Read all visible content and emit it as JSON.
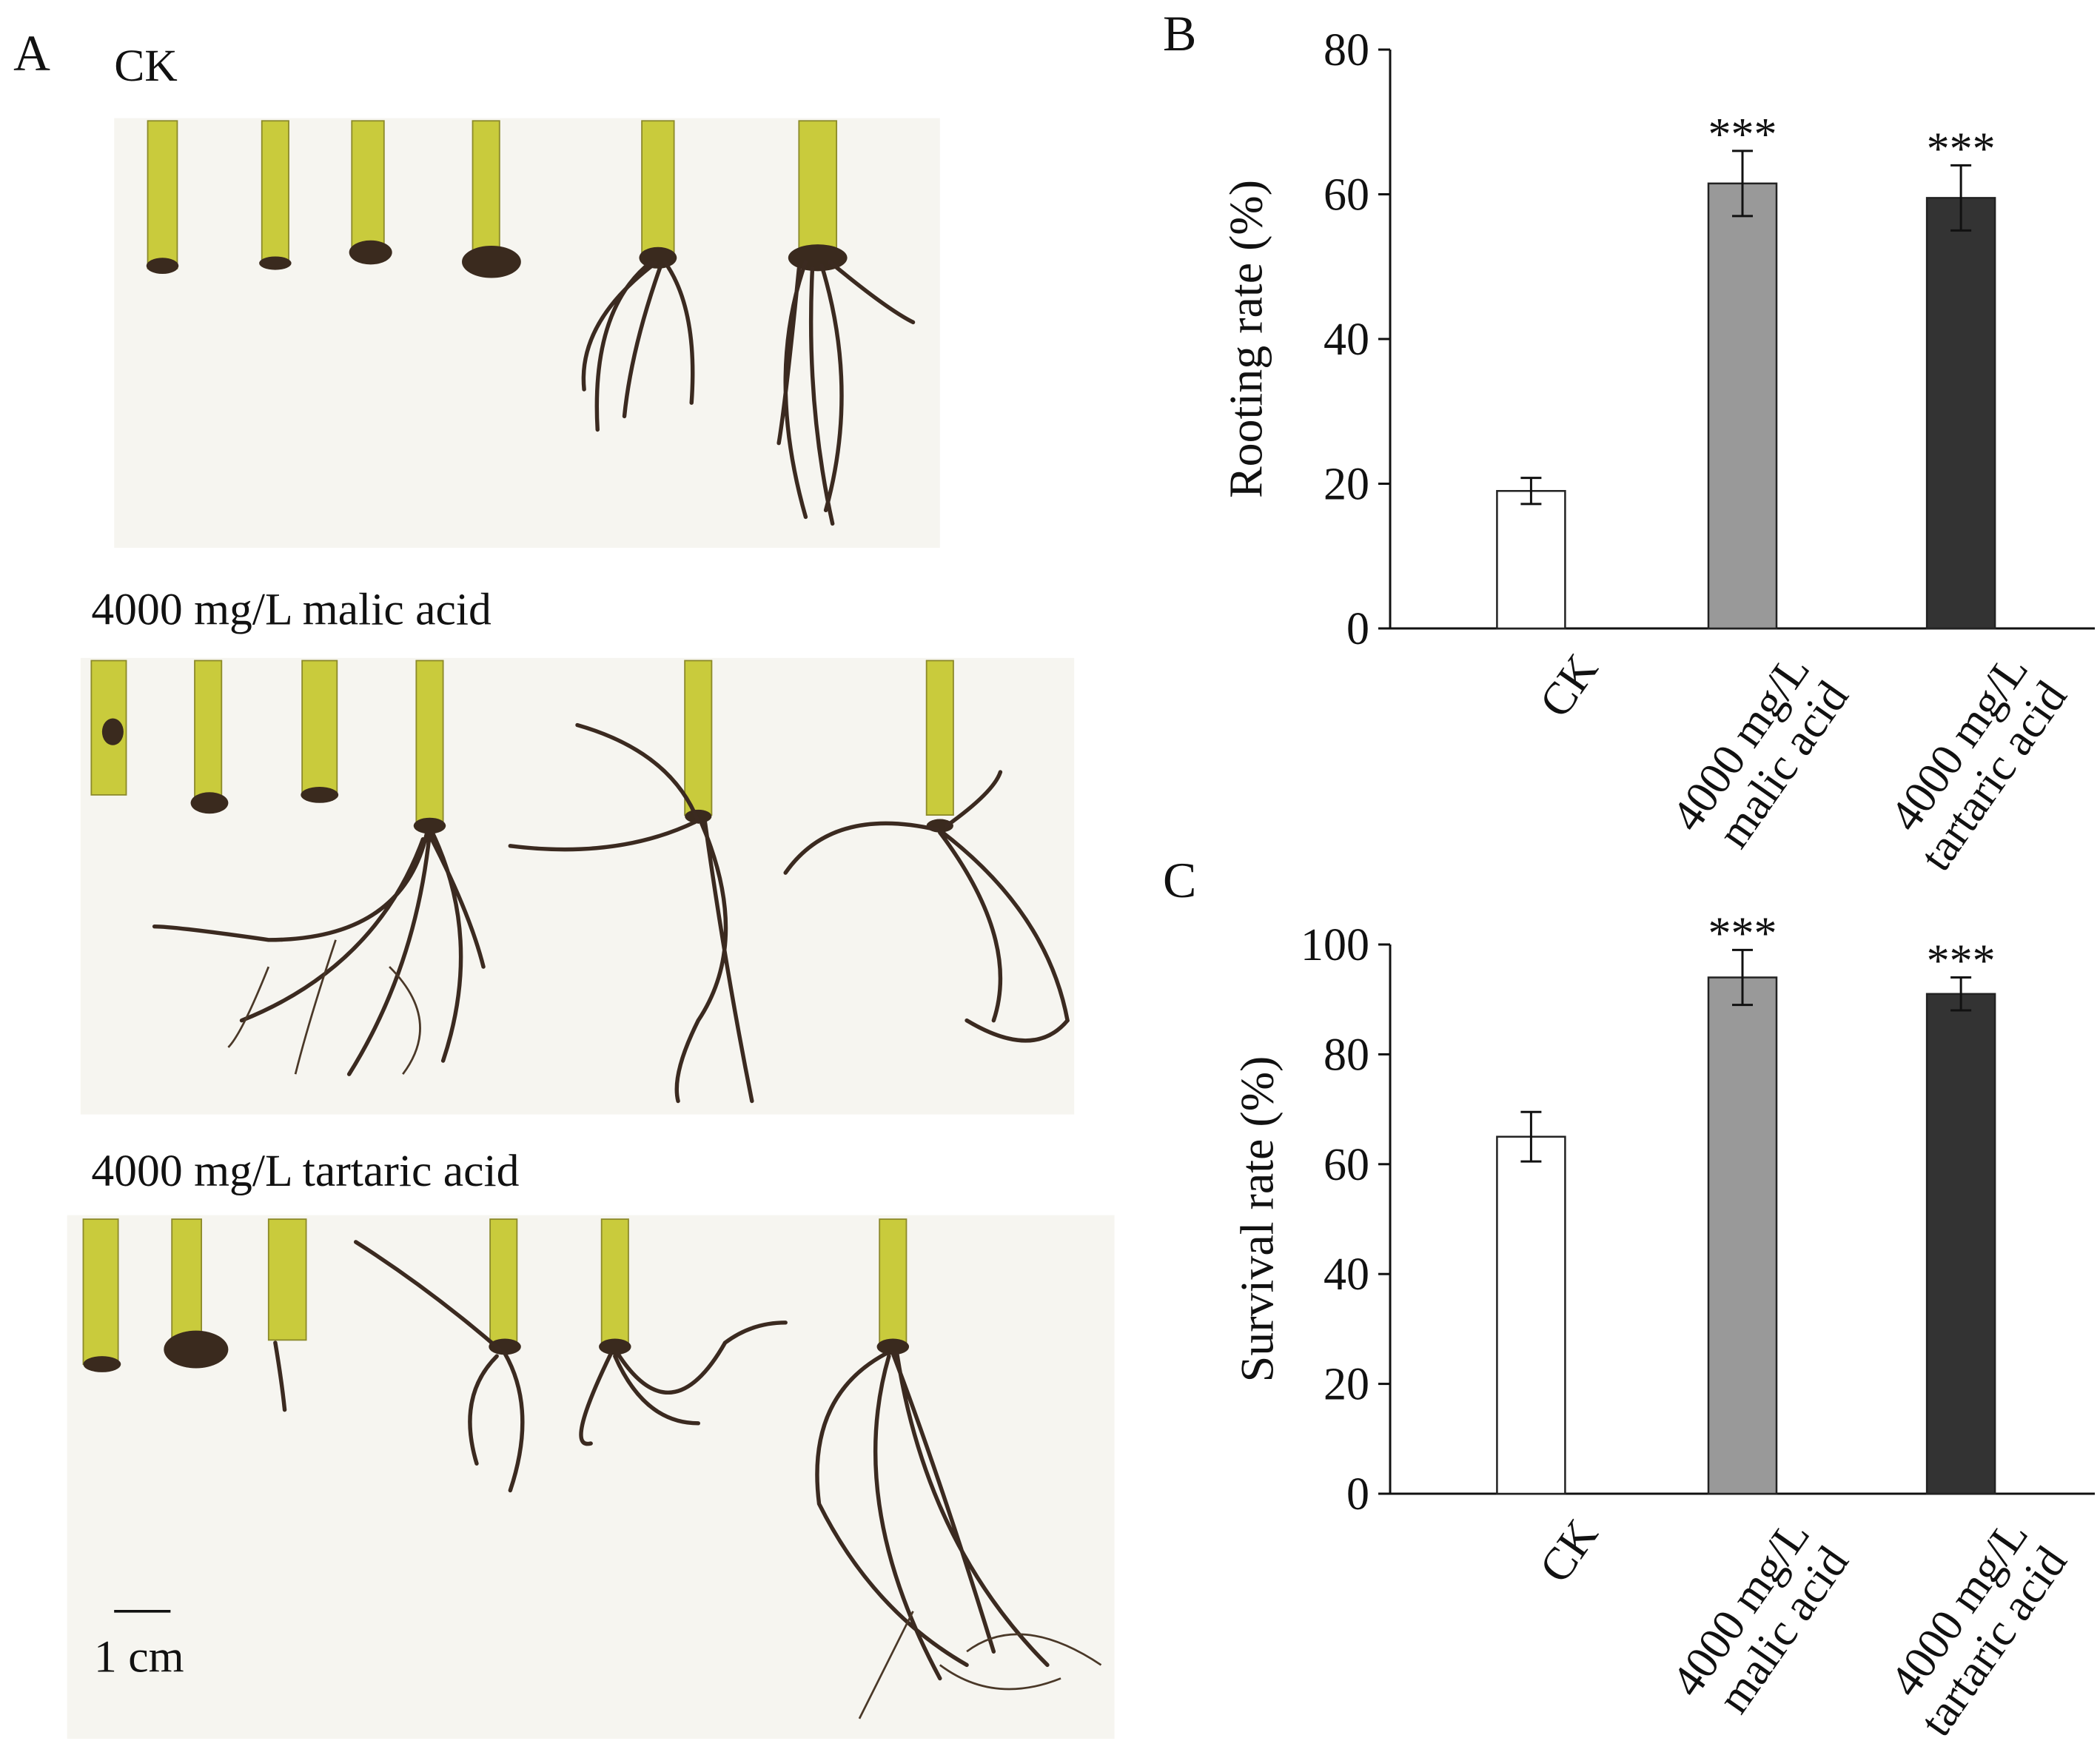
{
  "panel_a": {
    "label": "A",
    "groups": [
      "CK",
      "4000 mg/L malic acid",
      "4000 mg/L tartaric acid"
    ],
    "scale_bar": "1 cm"
  },
  "chart_data": [
    {
      "type": "bar",
      "panel_label": "B",
      "y_label": "Rooting rate (%)",
      "categories": [
        "CK",
        "4000 mg/L malic acid",
        "4000 mg/L tartaric acid"
      ],
      "values": [
        19,
        61.5,
        59.5
      ],
      "errors": [
        1.8,
        4.5,
        4.5
      ],
      "significance": [
        null,
        "***",
        "***"
      ],
      "colors": [
        "#ffffff",
        "#999999",
        "#333333"
      ],
      "ylim": [
        0,
        80
      ],
      "yticks": [
        0,
        20,
        40,
        60,
        80
      ],
      "grid": false
    },
    {
      "type": "bar",
      "panel_label": "C",
      "y_label": "Survival rate (%)",
      "categories": [
        "CK",
        "4000 mg/L malic acid",
        "4000 mg/L tartaric acid"
      ],
      "values": [
        65,
        94,
        91
      ],
      "errors": [
        4.5,
        5,
        3
      ],
      "significance": [
        null,
        "***",
        "***"
      ],
      "colors": [
        "#ffffff",
        "#999999",
        "#333333"
      ],
      "ylim": [
        0,
        100
      ],
      "yticks": [
        0,
        20,
        40,
        60,
        80,
        100
      ],
      "grid": false
    }
  ]
}
